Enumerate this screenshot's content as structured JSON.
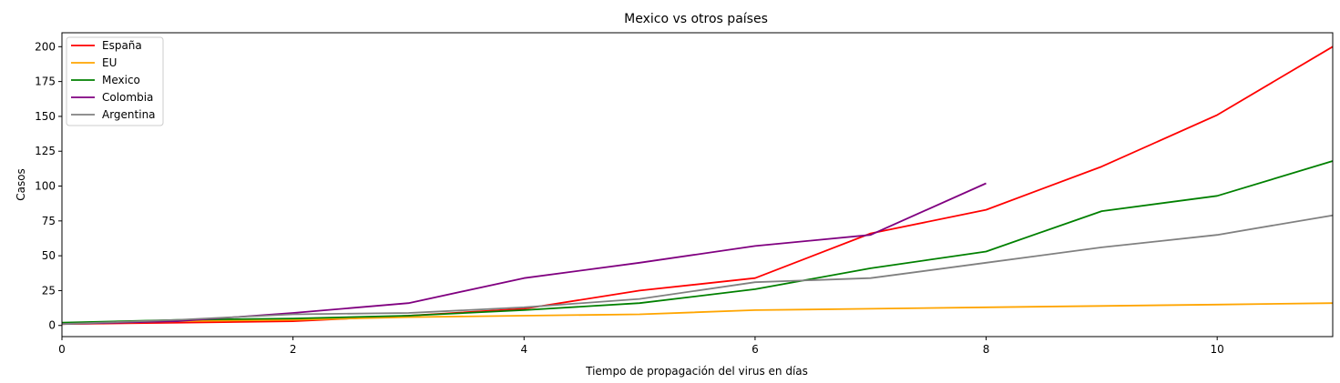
{
  "chart_data": {
    "type": "line",
    "title": "Mexico vs otros países",
    "xlabel": "Tiempo de propagación del virus en días",
    "ylabel": "Casos",
    "xlim": [
      0,
      11
    ],
    "ylim": [
      -8,
      210
    ],
    "xticks": [
      0,
      2,
      4,
      6,
      8,
      10
    ],
    "yticks": [
      0,
      25,
      50,
      75,
      100,
      125,
      150,
      175,
      200
    ],
    "grid": false,
    "legend_position": "top-left",
    "series": [
      {
        "name": "España",
        "color": "#ff0000",
        "x": [
          0,
          1,
          2,
          3,
          4,
          5,
          6,
          7,
          8,
          9,
          10,
          11
        ],
        "y": [
          1,
          2,
          3,
          7,
          12,
          25,
          34,
          66,
          83,
          114,
          151,
          200
        ]
      },
      {
        "name": "EU",
        "color": "#ffa500",
        "x": [
          0,
          1,
          2,
          3,
          4,
          5,
          6,
          7,
          8,
          9,
          10,
          11
        ],
        "y": [
          1,
          3,
          4,
          6,
          7,
          8,
          11,
          12,
          13,
          14,
          15,
          16
        ]
      },
      {
        "name": "Mexico",
        "color": "#008000",
        "x": [
          0,
          1,
          2,
          3,
          4,
          5,
          6,
          7,
          8,
          9,
          10,
          11
        ],
        "y": [
          2,
          4,
          5,
          7,
          11,
          16,
          26,
          41,
          53,
          82,
          93,
          118
        ]
      },
      {
        "name": "Colombia",
        "color": "#800080",
        "x": [
          0,
          1,
          2,
          3,
          4,
          5,
          6,
          7,
          8
        ],
        "y": [
          1,
          3,
          9,
          16,
          34,
          45,
          57,
          65,
          102
        ]
      },
      {
        "name": "Argentina",
        "color": "#808080",
        "x": [
          0,
          1,
          2,
          3,
          4,
          5,
          6,
          7,
          8,
          9,
          10,
          11
        ],
        "y": [
          1,
          4,
          8,
          9,
          13,
          19,
          31,
          34,
          45,
          56,
          65,
          79
        ]
      }
    ]
  }
}
